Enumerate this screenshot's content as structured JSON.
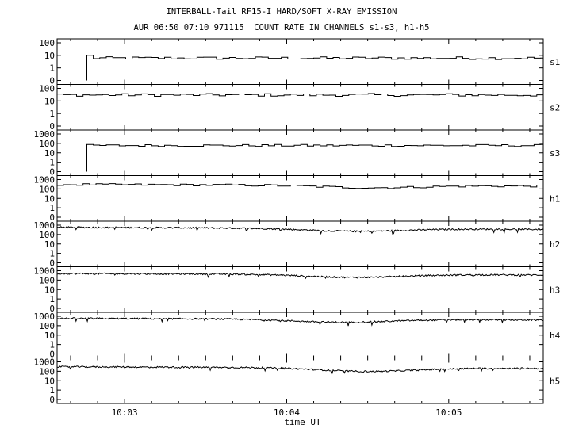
{
  "title": "INTERBALL-Tail RF15-I HARD/SOFT X-RAY EMISSION",
  "subtitle": "AUR 06:50 07:10 971115  COUNT RATE IN CHANNELS s1-s3, h1-h5",
  "chart_data": [
    {
      "type": "line",
      "name": "s1",
      "y_scale": "log",
      "ylim": [
        0,
        100
      ],
      "y_ticks": [
        "100",
        "10",
        "1",
        "0"
      ],
      "data_start": "10:02:46",
      "level": 6,
      "first_value": 10,
      "noise": "step"
    },
    {
      "type": "line",
      "name": "s2",
      "y_scale": "log",
      "ylim": [
        0,
        100
      ],
      "y_ticks": [
        "100",
        "10",
        "1",
        "0"
      ],
      "data_start": "10:02:35",
      "level": 30,
      "noise": "step"
    },
    {
      "type": "line",
      "name": "s3",
      "y_scale": "log",
      "ylim": [
        0,
        1000
      ],
      "y_ticks": [
        "1000",
        "100",
        "10",
        "1",
        "0"
      ],
      "data_start": "10:02:46",
      "level": 60,
      "noise": "step"
    },
    {
      "type": "line",
      "name": "h1",
      "y_scale": "log",
      "ylim": [
        0,
        1000
      ],
      "y_ticks": [
        "1000",
        "100",
        "10",
        "1",
        "0"
      ],
      "data_start": "10:02:35",
      "level": 300,
      "level_end": 200,
      "dip_at": "10:04:30",
      "dip_value": 120,
      "noise": "step"
    },
    {
      "type": "line",
      "name": "h2",
      "y_scale": "log",
      "ylim": [
        0,
        1000
      ],
      "y_ticks": [
        "1000",
        "100",
        "10",
        "1",
        "0"
      ],
      "data_start": "10:02:35",
      "level": 600,
      "level_end": 350,
      "dip_at": "10:04:25",
      "dip_value": 200,
      "noise": "fine"
    },
    {
      "type": "line",
      "name": "h3",
      "y_scale": "log",
      "ylim": [
        0,
        1000
      ],
      "y_ticks": [
        "1000",
        "100",
        "10",
        "1",
        "0"
      ],
      "data_start": "10:02:35",
      "level": 500,
      "level_end": 350,
      "dip_at": "10:04:25",
      "dip_value": 150,
      "noise": "fine"
    },
    {
      "type": "line",
      "name": "h4",
      "y_scale": "log",
      "ylim": [
        0,
        1000
      ],
      "y_ticks": [
        "1000",
        "100",
        "10",
        "1",
        "0"
      ],
      "data_start": "10:02:35",
      "level": 600,
      "level_end": 400,
      "dip_at": "10:04:20",
      "dip_value": 180,
      "noise": "fine"
    },
    {
      "type": "line",
      "name": "h5",
      "y_scale": "log",
      "ylim": [
        0,
        1000
      ],
      "y_ticks": [
        "1000",
        "100",
        "10",
        "1",
        "0"
      ],
      "data_start": "10:02:35",
      "level": 300,
      "level_end": 200,
      "dip_at": "10:04:30",
      "dip_value": 70,
      "noise": "fine"
    }
  ],
  "x_axis": {
    "label": "time UT",
    "range": [
      "10:02:35",
      "10:05:35"
    ],
    "major_ticks": [
      "10:03",
      "10:04",
      "10:05"
    ],
    "minor_tick_seconds": 10
  },
  "colors": {
    "line": "#000000",
    "background": "#ffffff"
  }
}
